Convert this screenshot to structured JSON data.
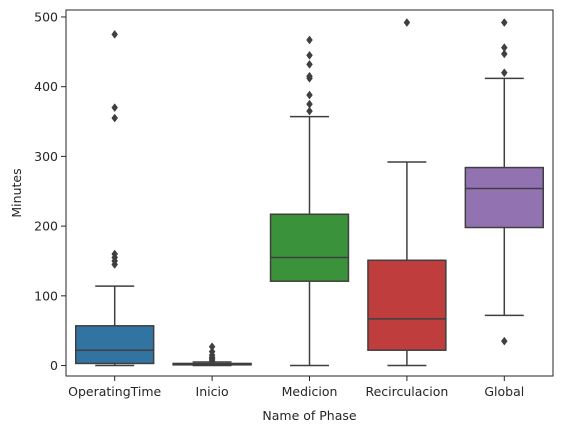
{
  "chart_data": {
    "type": "box",
    "title": "",
    "xlabel": "Name of Phase",
    "ylabel": "Minutes",
    "ylim": [
      -15,
      510
    ],
    "yticks": [
      0,
      100,
      200,
      300,
      400,
      500
    ],
    "grid": false,
    "legend": "none",
    "categories": [
      "OperatingTime",
      "Inicio",
      "Medicion",
      "Recirculacion",
      "Global"
    ],
    "boxes": [
      {
        "category": "OperatingTime",
        "color": "#3274a1",
        "whisker_low": 0,
        "q1": 3,
        "median": 22,
        "q3": 57,
        "whisker_high": 114,
        "outliers": [
          145,
          150,
          155,
          160,
          355,
          370,
          475
        ]
      },
      {
        "category": "Inicio",
        "color": "#e1812c",
        "whisker_low": 0,
        "q1": 1,
        "median": 2,
        "q3": 3,
        "whisker_high": 5,
        "outliers": [
          6,
          8,
          10,
          12,
          15,
          20,
          27
        ]
      },
      {
        "category": "Medicion",
        "color": "#3a923a",
        "whisker_low": 0,
        "q1": 121,
        "median": 155,
        "q3": 217,
        "whisker_high": 357,
        "outliers": [
          365,
          375,
          388,
          412,
          415,
          432,
          445,
          467
        ]
      },
      {
        "category": "Recirculacion",
        "color": "#c03d3e",
        "whisker_low": 0,
        "q1": 22,
        "median": 67,
        "q3": 151,
        "whisker_high": 292,
        "outliers": [
          492
        ]
      },
      {
        "category": "Global",
        "color": "#9372b2",
        "whisker_low": 72,
        "q1": 198,
        "median": 254,
        "q3": 284,
        "whisker_high": 412,
        "outliers": [
          35,
          420,
          447,
          456,
          492
        ]
      }
    ],
    "line_color": "#3f3f3f"
  }
}
